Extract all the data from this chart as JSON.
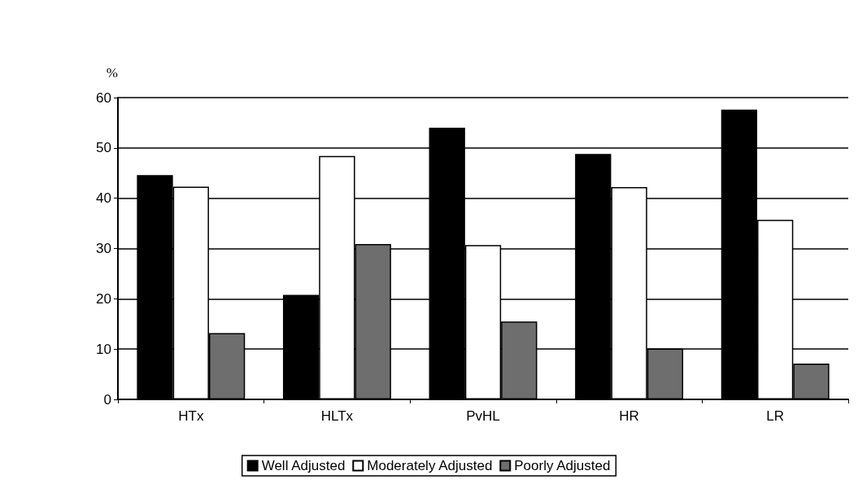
{
  "chart_data": {
    "type": "bar",
    "ylabel": "%",
    "categories": [
      "HTx",
      "HLTx",
      "PvHL",
      "HR",
      "LR"
    ],
    "series": [
      {
        "name": "Well Adjusted",
        "color": "#000000",
        "values": [
          44.6,
          20.8,
          54.0,
          48.8,
          57.6
        ]
      },
      {
        "name": "Moderately Adjusted",
        "color": "#ffffff",
        "values": [
          42.3,
          48.4,
          30.7,
          42.2,
          35.7
        ]
      },
      {
        "name": "Poorly Adjusted",
        "color": "#6e6e6e",
        "values": [
          13.2,
          30.9,
          15.5,
          10.1,
          7.1
        ]
      }
    ],
    "ylim": [
      0,
      60
    ],
    "yticks": [
      0,
      10,
      20,
      30,
      40,
      50,
      60
    ],
    "grid": "y",
    "legend": "bottom"
  }
}
